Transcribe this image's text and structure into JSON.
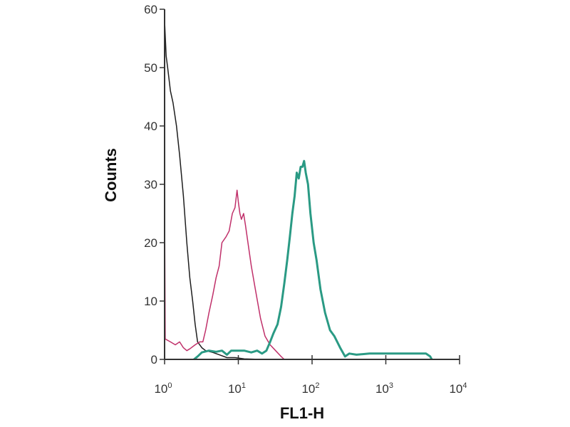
{
  "chart_data": {
    "type": "line",
    "title": "",
    "xlabel": "FL1-H",
    "ylabel": "Counts",
    "xscale": "log",
    "xlim": [
      1,
      10000
    ],
    "ylim": [
      0,
      60
    ],
    "grid": false,
    "xticks": [
      {
        "value": 1,
        "base": "10",
        "exp": "0"
      },
      {
        "value": 10,
        "base": "10",
        "exp": "1"
      },
      {
        "value": 100,
        "base": "10",
        "exp": "2"
      },
      {
        "value": 1000,
        "base": "10",
        "exp": "3"
      },
      {
        "value": 10000,
        "base": "10",
        "exp": "4"
      }
    ],
    "yticks": [
      "0",
      "10",
      "20",
      "30",
      "40",
      "50",
      "60"
    ],
    "series": [
      {
        "color": "#1e1e1e",
        "width": 1.5,
        "x": [
          1.0,
          1.05,
          1.1,
          1.2,
          1.3,
          1.45,
          1.6,
          1.8,
          2.0,
          2.2,
          2.4,
          2.6,
          2.8,
          3.2,
          3.6,
          4.5,
          5.5,
          7,
          9,
          12,
          20,
          40
        ],
        "y": [
          58,
          52,
          50,
          46,
          44,
          40,
          35,
          28,
          20,
          14,
          10,
          6,
          3,
          2,
          1.5,
          1.2,
          0.8,
          0.3,
          0.3,
          0.1,
          0,
          0
        ]
      },
      {
        "color": "#c0306a",
        "width": 1.5,
        "x": [
          1.0,
          1.0,
          1.02,
          1.2,
          1.4,
          1.6,
          1.8,
          2.0,
          2.2,
          2.6,
          3.0,
          3.3,
          3.6,
          4.0,
          4.5,
          5.0,
          5.5,
          6.0,
          6.8,
          7.5,
          8.3,
          9.0,
          9.6,
          10.0,
          10.5,
          11.0,
          11.8,
          12.5,
          13.5,
          15,
          17,
          20,
          23,
          27,
          32,
          38,
          42,
          10000
        ],
        "y": [
          0,
          27,
          3.5,
          3,
          2.5,
          3,
          2,
          1.5,
          1.8,
          2.5,
          3,
          3,
          5,
          8,
          11,
          14,
          16,
          20,
          21,
          22,
          25,
          26,
          29,
          27,
          25,
          24,
          25,
          23,
          20,
          16,
          12,
          7,
          4,
          2.5,
          1.5,
          0.5,
          0,
          0
        ]
      },
      {
        "color": "#2a9a84",
        "width": 3,
        "x": [
          2.5,
          2.8,
          3.2,
          4,
          5,
          6,
          7,
          8,
          10,
          12,
          15,
          18,
          21,
          24,
          27,
          30,
          34,
          38,
          42,
          46,
          50,
          54,
          58,
          62,
          66,
          70,
          74,
          78,
          82,
          88,
          95,
          105,
          115,
          130,
          150,
          175,
          200,
          240,
          280,
          320,
          400,
          600,
          1000,
          1500,
          2500,
          3500,
          4000,
          4200
        ],
        "y": [
          0,
          0.5,
          1.2,
          1.5,
          1.3,
          1.5,
          0.8,
          1.5,
          1.5,
          1.5,
          1.2,
          1.5,
          1,
          1.5,
          3,
          4.5,
          6,
          9,
          13,
          17,
          21,
          25,
          28,
          32,
          31,
          33,
          33,
          34,
          32,
          30,
          25,
          20,
          17,
          12,
          8,
          5,
          4,
          2,
          0.5,
          1,
          0.8,
          1,
          1,
          1,
          1,
          1,
          0.5,
          0
        ]
      }
    ]
  }
}
